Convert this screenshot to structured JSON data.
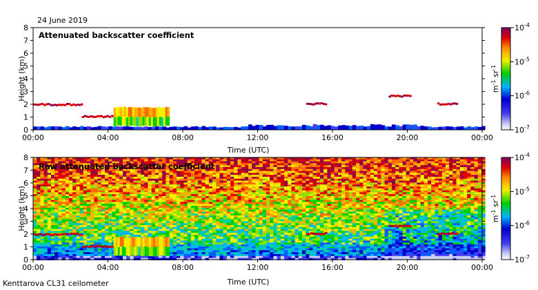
{
  "date": "24 June 2019",
  "footer": "Kenttarova CL31 ceilometer",
  "chart_data": [
    {
      "type": "heatmap",
      "title": "Attenuated backscatter coefficient",
      "xlabel": "Time (UTC)",
      "ylabel": "Height (km)",
      "xticks": [
        "00:00",
        "04:00",
        "08:00",
        "12:00",
        "16:00",
        "20:00",
        "00:00"
      ],
      "xlim_hours": [
        0,
        24
      ],
      "ylim": [
        0,
        8
      ],
      "yticks": [
        0,
        1,
        2,
        3,
        4,
        5,
        6,
        7,
        8
      ],
      "colorbar": {
        "label_parts": [
          "m",
          "-1",
          " sr",
          "-1"
        ],
        "scale": "log",
        "ticks": [
          {
            "base": "10",
            "exp": "-4",
            "value": 0.0001
          },
          {
            "base": "10",
            "exp": "-5",
            "value": 1e-05
          },
          {
            "base": "10",
            "exp": "-6",
            "value": 1e-06
          },
          {
            "base": "10",
            "exp": "-7",
            "value": 1e-07
          }
        ]
      },
      "features": [
        {
          "name": "cloud layer",
          "start_h": 0.0,
          "end_h": 2.6,
          "height_km": 1.95
        },
        {
          "name": "cloud layer",
          "start_h": 2.6,
          "end_h": 4.3,
          "height_km": 1.0
        },
        {
          "name": "cloud layer",
          "start_h": 4.3,
          "end_h": 7.2,
          "height_km": 1.0
        },
        {
          "name": "cloud layer",
          "start_h": 14.6,
          "end_h": 15.6,
          "height_km": 2.0
        },
        {
          "name": "cloud layer",
          "start_h": 19.0,
          "end_h": 20.2,
          "height_km": 2.6
        },
        {
          "name": "cloud layer",
          "start_h": 21.6,
          "end_h": 22.7,
          "height_km": 2.0
        }
      ]
    },
    {
      "type": "heatmap",
      "title": "Raw attenuated backscatter coefficient",
      "xlabel": "Time (UTC)",
      "ylabel": "Height (km)",
      "xticks": [
        "00:00",
        "04:00",
        "08:00",
        "12:00",
        "16:00",
        "20:00",
        "00:00"
      ],
      "xlim_hours": [
        0,
        24
      ],
      "ylim": [
        0,
        8
      ],
      "yticks": [
        0,
        1,
        2,
        3,
        4,
        5,
        6,
        7,
        8
      ],
      "colorbar": {
        "label_parts": [
          "m",
          "-1",
          " sr",
          "-1"
        ],
        "scale": "log",
        "ticks": [
          {
            "base": "10",
            "exp": "-4",
            "value": 0.0001
          },
          {
            "base": "10",
            "exp": "-5",
            "value": 1e-05
          },
          {
            "base": "10",
            "exp": "-6",
            "value": 1e-06
          },
          {
            "base": "10",
            "exp": "-7",
            "value": 1e-07
          }
        ]
      }
    }
  ]
}
